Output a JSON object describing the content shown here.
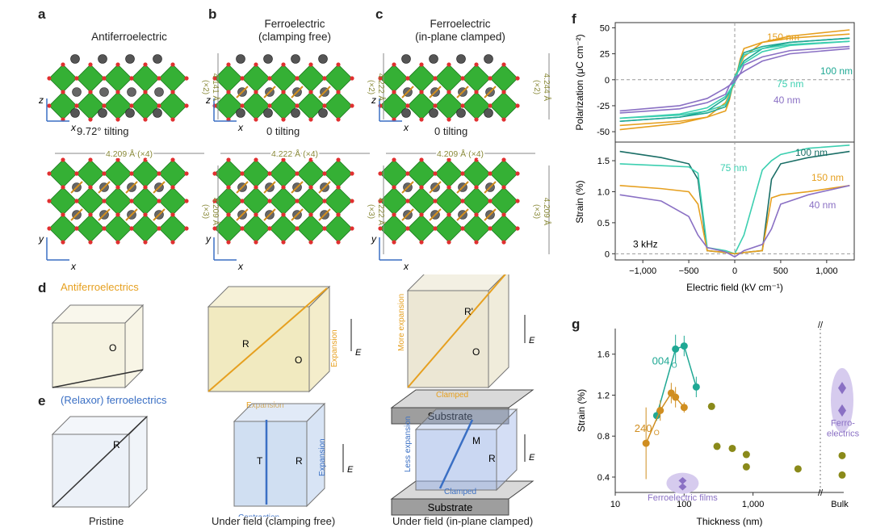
{
  "panel_labels": {
    "a": "a",
    "b": "b",
    "c": "c",
    "d": "d",
    "e": "e",
    "f": "f",
    "g": "g"
  },
  "col_a": {
    "title": "Antiferroelectric",
    "tilt": "9.72° tilting",
    "dim_z": "4.141 Å",
    "dim_z_mult": "(×2)",
    "dim_top": "4.209 Å (×4)",
    "dim_y": "4.209 Å",
    "dim_y_mult": "(×3)"
  },
  "col_b": {
    "title_line1": "Ferroelectric",
    "title_line2": "(clamping free)",
    "tilt": "0 tilting",
    "dim_z": "4.222 Å",
    "dim_z_mult": "(×2)",
    "dim_top": "4.222 Å (×4)",
    "dim_y": "4.222 Å",
    "dim_y_mult": "(×3)"
  },
  "col_c": {
    "title_line1": "Ferroelectric",
    "title_line2": "(in-plane clamped)",
    "tilt": "0 tilting",
    "dim_z": "4.244 Å",
    "dim_z_mult": "(×2)",
    "dim_top": "4.209 Å (×4)",
    "dim_y": "4.209 Å",
    "dim_y_mult": "(×3)"
  },
  "axes_labels": {
    "z": "z",
    "x": "x",
    "y": "y"
  },
  "panel_d": {
    "title": "Antiferroelectrics",
    "phase_o": "O",
    "phase_r": "R",
    "phase_rp": "R'",
    "expansion": "Expansion",
    "more_expansion": "More expansion",
    "clamped": "Clamped",
    "substrate": "Substrate",
    "field": "E"
  },
  "panel_e": {
    "title": "(Relaxor) ferroelectrics",
    "phase_r": "R",
    "phase_t": "T",
    "phase_m": "M",
    "expansion": "Expansion",
    "contraction": "Contraction",
    "less_expansion": "Less expansion",
    "clamped": "Clamped",
    "substrate": "Substrate",
    "field": "E"
  },
  "bottom_captions": {
    "pristine": "Pristine",
    "under_field_free": "Under field (clamping free)",
    "under_field_clamped": "Under field (in-plane clamped)"
  },
  "colors": {
    "green": "#3cb43c",
    "orange": "#e6a020",
    "teal": "#1fa894",
    "purple": "#8a70c4",
    "olive": "#8a8a1a",
    "blue": "#3a6fc4"
  },
  "chart_data": [
    {
      "type": "line",
      "panel": "f-top",
      "ylabel": "Polarization (μC cm⁻²)",
      "xlim": [
        -1300,
        1300
      ],
      "ylim": [
        -60,
        55
      ],
      "yticks": [
        -50,
        -25,
        0,
        25,
        50
      ],
      "series": [
        {
          "name": "150 nm",
          "color": "#e6a020",
          "x": [
            -1250,
            -600,
            -300,
            -100,
            0,
            60,
            100,
            300,
            600,
            1250
          ],
          "y": [
            -48,
            -42,
            -36,
            -22,
            -3,
            20,
            30,
            36,
            40,
            44
          ]
        },
        {
          "name": "100 nm",
          "color": "#1fa894",
          "x": [
            -1250,
            -600,
            -300,
            -100,
            0,
            60,
            100,
            300,
            600,
            1250
          ],
          "y": [
            -40,
            -36,
            -30,
            -18,
            -3,
            18,
            26,
            32,
            36,
            40
          ]
        },
        {
          "name": "75 nm",
          "color": "#3ccfb0",
          "x": [
            -1250,
            -600,
            -300,
            -100,
            0,
            60,
            100,
            300,
            600,
            1250
          ],
          "y": [
            -37,
            -33,
            -27,
            -16,
            -3,
            16,
            24,
            30,
            34,
            37
          ]
        },
        {
          "name": "40 nm",
          "color": "#8a70c4",
          "x": [
            -1250,
            -600,
            -300,
            -100,
            0,
            60,
            100,
            300,
            600,
            1250
          ],
          "y": [
            -30,
            -25,
            -18,
            -8,
            -2,
            6,
            14,
            22,
            28,
            32
          ]
        }
      ]
    },
    {
      "type": "line",
      "panel": "f-bottom",
      "ylabel": "Strain (%)",
      "xlabel": "Electric field (kV cm⁻¹)",
      "xlim": [
        -1300,
        1300
      ],
      "ylim": [
        -0.1,
        1.8
      ],
      "yticks": [
        0,
        0.5,
        1.0,
        1.5
      ],
      "xticks": [
        -1000,
        -500,
        0,
        500,
        1000
      ],
      "xtick_labels": [
        "−1,000",
        "−500",
        "0",
        "500",
        "1,000"
      ],
      "annotation": "3 kHz",
      "series": [
        {
          "name": "100 nm",
          "color": "#1a6e66",
          "x": [
            -1250,
            -800,
            -500,
            -400,
            -300,
            -100,
            0,
            100,
            300,
            400,
            500,
            800,
            1250
          ],
          "y": [
            1.65,
            1.55,
            1.45,
            1.2,
            0.05,
            0.02,
            0,
            0.02,
            0.05,
            1.2,
            1.45,
            1.55,
            1.65
          ]
        },
        {
          "name": "75 nm",
          "color": "#3ccfb0",
          "x": [
            -1250,
            -800,
            -500,
            -400,
            -300,
            -100,
            0,
            100,
            300,
            400,
            500,
            800,
            1250
          ],
          "y": [
            1.45,
            1.42,
            1.4,
            1.3,
            0.1,
            0.05,
            0,
            0.3,
            1.35,
            1.5,
            1.6,
            1.7,
            1.75
          ]
        },
        {
          "name": "150 nm",
          "color": "#e6a020",
          "x": [
            -1250,
            -800,
            -500,
            -400,
            -300,
            -100,
            0,
            100,
            300,
            400,
            500,
            800,
            1250
          ],
          "y": [
            1.1,
            1.05,
            1.0,
            0.8,
            0.05,
            0.02,
            0,
            0.02,
            0.05,
            0.9,
            0.95,
            1.0,
            1.1
          ]
        },
        {
          "name": "40 nm",
          "color": "#8a70c4",
          "x": [
            -1250,
            -800,
            -500,
            -400,
            -300,
            -100,
            0,
            100,
            300,
            400,
            500,
            800,
            1250
          ],
          "y": [
            0.95,
            0.85,
            0.6,
            0.3,
            0.1,
            0.03,
            -0.05,
            0.05,
            0.15,
            0.4,
            0.8,
            0.95,
            1.1
          ]
        }
      ]
    },
    {
      "type": "scatter",
      "panel": "g",
      "ylabel": "Strain (%)",
      "xlabel": "Thickness (nm)",
      "xscale": "log",
      "xlim": [
        10,
        6500
      ],
      "ylim": [
        0.25,
        1.85
      ],
      "yticks": [
        0.4,
        0.8,
        1.2,
        1.6
      ],
      "xticks": [
        10,
        100,
        1000
      ],
      "xtick_labels": [
        "10",
        "100",
        "1,000"
      ],
      "bulk_label": "Bulk",
      "series": [
        {
          "name": "004o",
          "label_main": "004",
          "label_sub": "O",
          "color": "#1fa894",
          "x": [
            40,
            75,
            100,
            150
          ],
          "y": [
            1.0,
            1.65,
            1.68,
            1.28
          ],
          "err": [
            0.05,
            0.14,
            0.1,
            0.1
          ]
        },
        {
          "name": "240o",
          "label_main": "240",
          "label_sub": "O",
          "color": "#d08e20",
          "x": [
            28,
            45,
            65,
            75,
            100
          ],
          "y": [
            0.73,
            1.05,
            1.22,
            1.18,
            1.08
          ],
          "err": [
            0.35,
            0.1,
            0.1,
            0.1,
            0.05
          ]
        },
        {
          "name": "olive",
          "color": "#8a8a1a",
          "x": [
            250,
            300,
            500,
            800,
            800,
            4500
          ],
          "y": [
            1.09,
            0.7,
            0.68,
            0.62,
            0.5,
            0.48
          ]
        },
        {
          "name": "bulk",
          "color": "#8a8a1a",
          "bulk": true,
          "y": [
            0.61,
            0.42
          ]
        }
      ],
      "annotations": {
        "ferroelectric_films": "Ferroelectric films",
        "ferroelectrics_line1": "Ferro-",
        "ferroelectrics_line2": "electrics"
      }
    }
  ]
}
